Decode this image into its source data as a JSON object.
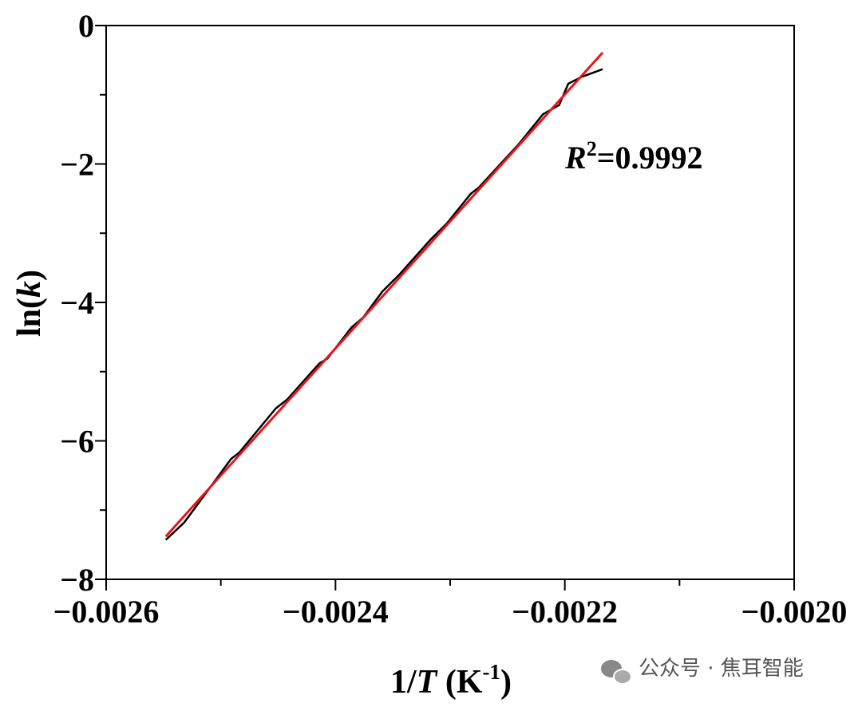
{
  "chart_data": {
    "type": "line",
    "xlabel": {
      "before": "1/",
      "italic": "T",
      "middle": " (K",
      "sup": "-1",
      "after": ")"
    },
    "ylabel": {
      "before": "ln(",
      "italic": "k",
      "after": ")"
    },
    "annotation": {
      "italic": "R",
      "sup": "2",
      "after": "=0.9992"
    },
    "watermark": "公众号 · 焦耳智能",
    "xlim": [
      -0.0026,
      -0.002
    ],
    "ylim": [
      -8,
      0
    ],
    "xticks": [
      {
        "value": -0.0026,
        "label": "−0.0026"
      },
      {
        "value": -0.0024,
        "label": "−0.0024"
      },
      {
        "value": -0.0022,
        "label": "−0.0022"
      },
      {
        "value": -0.002,
        "label": "−0.0020"
      }
    ],
    "yticks": [
      {
        "value": -8,
        "label": "−8"
      },
      {
        "value": -6,
        "label": "−6"
      },
      {
        "value": -4,
        "label": "−4"
      },
      {
        "value": -2,
        "label": "−2"
      },
      0
    ],
    "xminor": [
      -0.0025,
      -0.0023,
      -0.0021
    ],
    "yminor": [
      -7,
      -5,
      -3,
      -1
    ],
    "series": [
      {
        "color": "#000000",
        "x": [
          -0.002548,
          -0.002532,
          -0.002519,
          -0.002491,
          -0.002484,
          -0.002452,
          -0.002442,
          -0.002414,
          -0.002407,
          -0.002386,
          -0.002376,
          -0.002359,
          -0.002345,
          -0.002317,
          -0.002303,
          -0.002282,
          -0.002275,
          -0.00224,
          -0.002219,
          -0.002205,
          -0.002197,
          -0.002185,
          -0.002167
        ],
        "values": [
          -7.43,
          -7.18,
          -6.89,
          -6.26,
          -6.17,
          -5.53,
          -5.4,
          -4.88,
          -4.81,
          -4.36,
          -4.22,
          -3.84,
          -3.61,
          -3.09,
          -2.86,
          -2.43,
          -2.34,
          -1.71,
          -1.28,
          -1.15,
          -0.84,
          -0.74,
          -0.63
        ]
      },
      {
        "color": "#e8141b",
        "x": [
          -0.002548,
          -0.002167
        ],
        "values": [
          -7.38,
          -0.39
        ]
      }
    ]
  }
}
